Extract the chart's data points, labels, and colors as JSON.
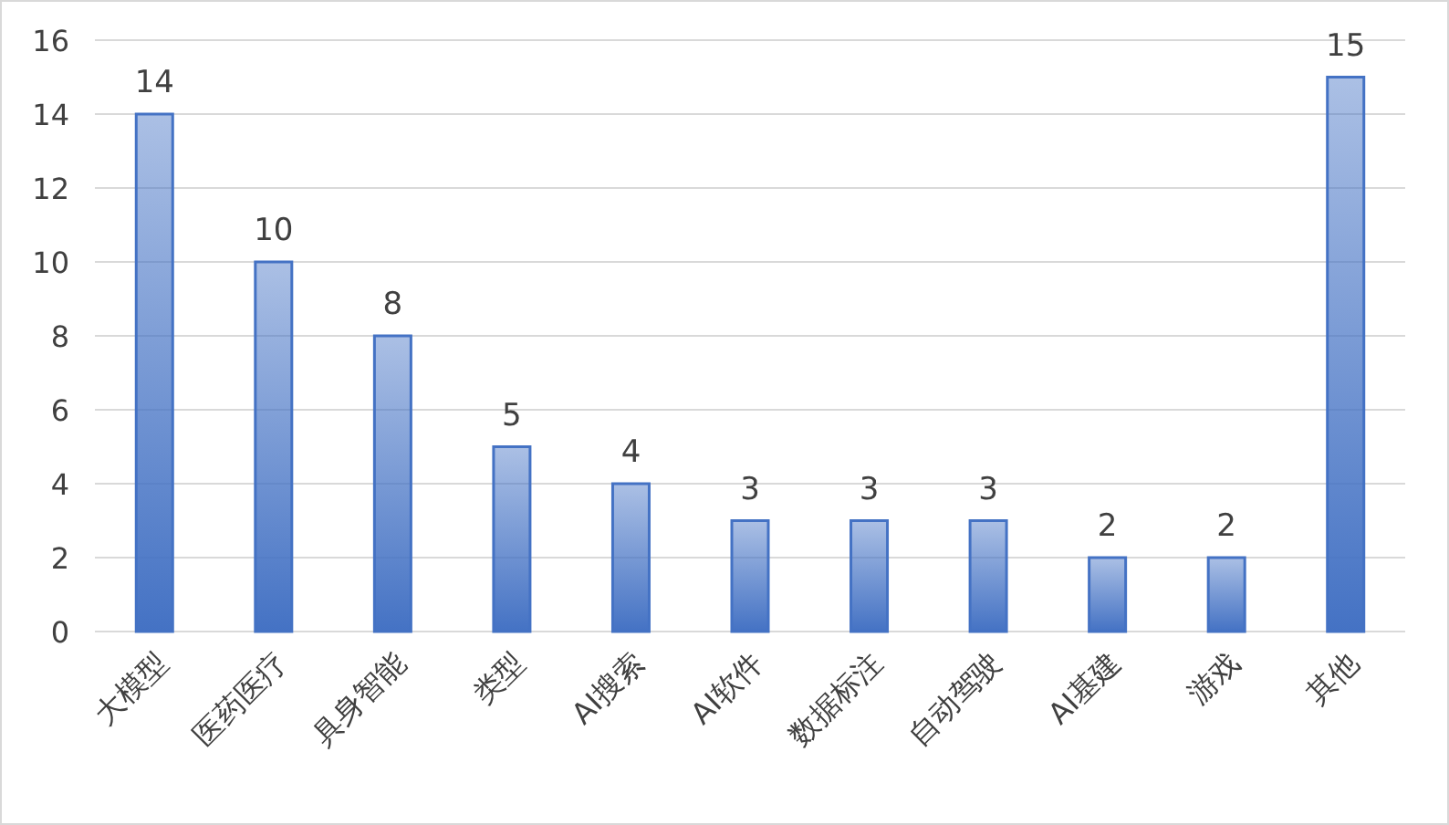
{
  "chart_data": {
    "type": "bar",
    "categories": [
      "大模型",
      "医药医疗",
      "具身智能",
      "类型",
      "AI搜索",
      "AI软件",
      "数据标注",
      "自动驾驶",
      "AI基建",
      "游戏",
      "其他"
    ],
    "values": [
      14,
      10,
      8,
      5,
      4,
      3,
      3,
      3,
      2,
      2,
      15
    ],
    "color": "#4472c4",
    "ylim": [
      0,
      16
    ],
    "yticks": [
      0,
      2,
      4,
      6,
      8,
      10,
      12,
      14,
      16
    ],
    "grid": "y",
    "data_labels": true
  }
}
